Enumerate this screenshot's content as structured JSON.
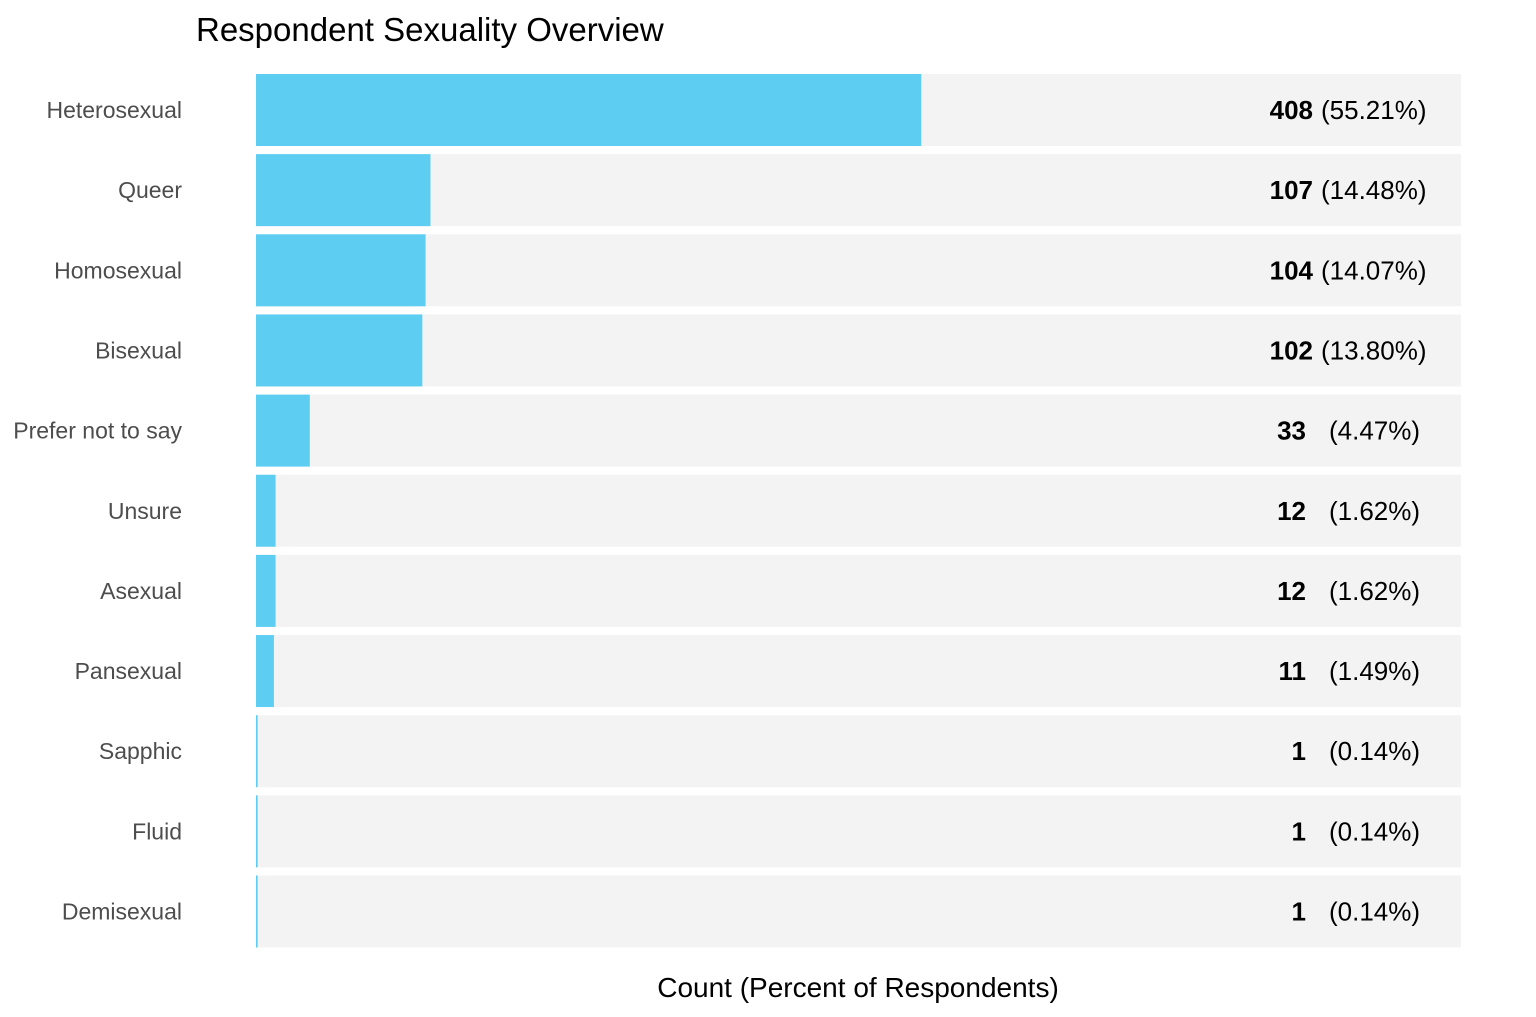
{
  "chart_data": {
    "type": "bar",
    "orientation": "horizontal",
    "title": "Respondent Sexuality Overview",
    "xlabel": "Count (Percent of Respondents)",
    "ylabel": "",
    "categories": [
      "Heterosexual",
      "Queer",
      "Homosexual",
      "Bisexual",
      "Prefer not to say",
      "Unsure",
      "Asexual",
      "Pansexual",
      "Sapphic",
      "Fluid",
      "Demisexual"
    ],
    "values": [
      408,
      107,
      104,
      102,
      33,
      12,
      12,
      11,
      1,
      1,
      1
    ],
    "percent_labels": [
      "(55.21%)",
      "(14.48%)",
      "(14.07%)",
      "(13.80%)",
      "(4.47%)",
      "(1.62%)",
      "(1.62%)",
      "(1.49%)",
      "(0.14%)",
      "(0.14%)",
      "(0.14%)"
    ],
    "xlim": [
      0,
      739
    ],
    "bar_color": "#5ecdf2",
    "track_color": "#f3f3f3",
    "grid": false,
    "legend": "none"
  }
}
